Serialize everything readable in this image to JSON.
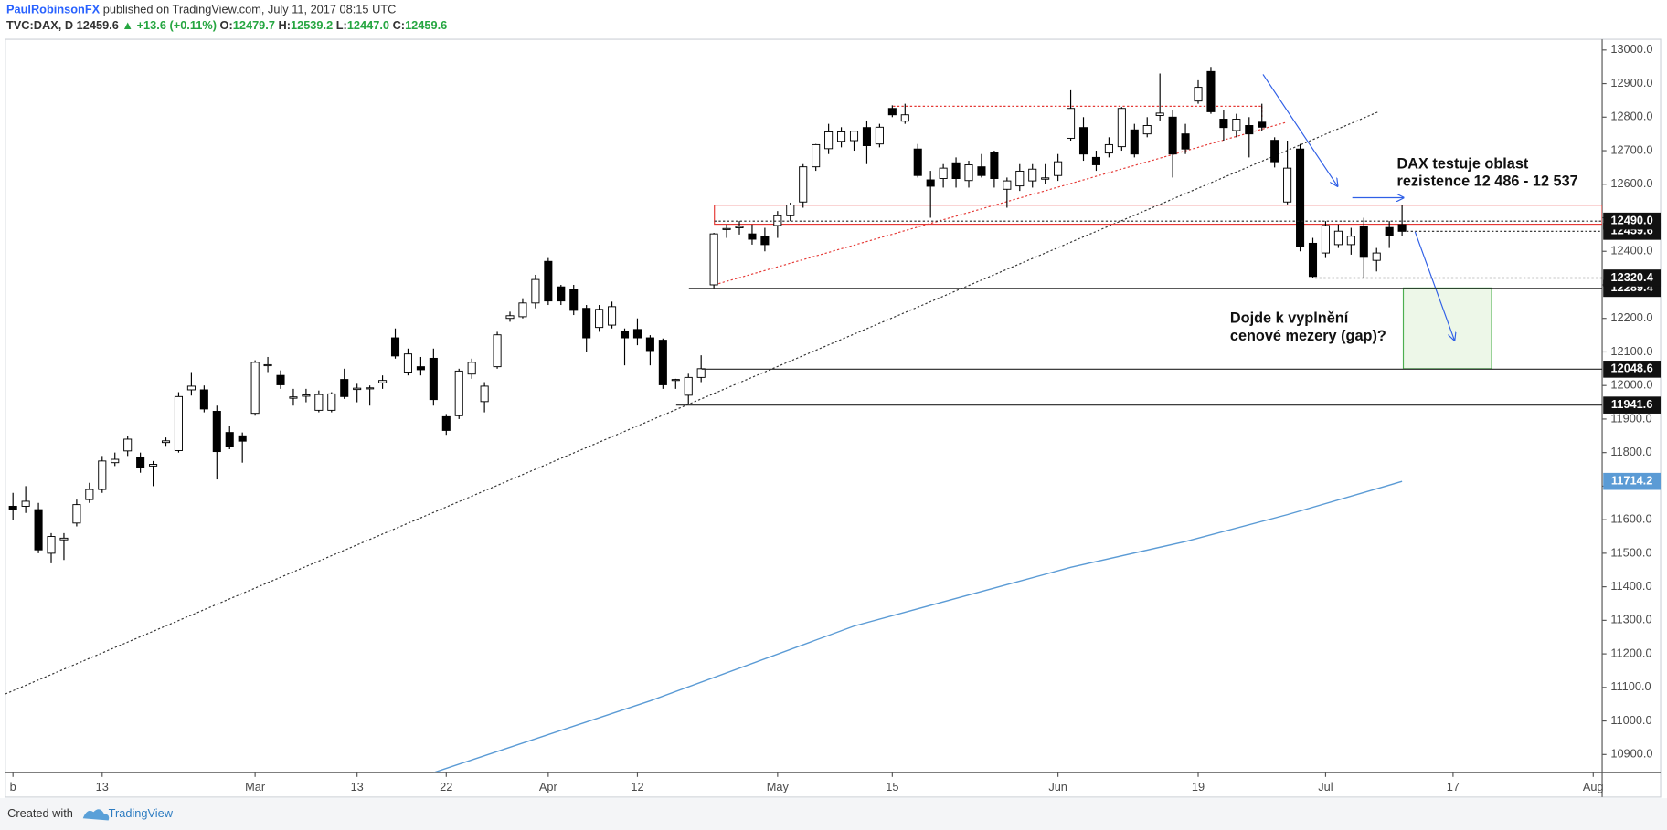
{
  "header": {
    "author": "PaulRobinsonFX",
    "published": "published on TradingView.com, July 11, 2017 08:15 UTC",
    "symbol": "TVC:DAX, D",
    "last": "12459.6",
    "change": "▲ +13.6 (+0.11%)",
    "ohlc": [
      {
        "label": "O:",
        "value": "12479.7"
      },
      {
        "label": "H:",
        "value": "12539.2"
      },
      {
        "label": "L:",
        "value": "12447.0"
      },
      {
        "label": "C:",
        "value": "12459.6"
      }
    ]
  },
  "annotations": [
    "DAX testuje oblast",
    "rezistence 12 486 - 12 537",
    "Dojde k vyplnění",
    "cenové mezery (gap)?"
  ],
  "footer": {
    "created": "Created with",
    "brand": "TradingView"
  },
  "chart_data": {
    "type": "candlestick",
    "open": [
      11640,
      11640,
      11630,
      11500,
      11540,
      11590,
      11660,
      11690,
      11770,
      11805,
      11785,
      11760,
      11830,
      11806,
      11987,
      11987,
      11923,
      11860,
      11850,
      11917,
      12060,
      12030,
      11962,
      11968,
      11926,
      11926,
      12018,
      11988,
      11990,
      12008,
      12142,
      12040,
      12056,
      12081,
      11907,
      11910,
      12034,
      11952,
      12056,
      12200,
      12205,
      12246,
      12370,
      12294,
      12287,
      12230,
      12173,
      12180,
      12160,
      12167,
      12142,
      12135,
      12015,
      11971,
      12024,
      12300,
      12465,
      12470,
      12452,
      12443,
      12477,
      12506,
      12547,
      12652,
      12706,
      12728,
      12730,
      12769,
      12720,
      12826,
      12788,
      12705,
      12613,
      12617,
      12664,
      12611,
      12652,
      12696,
      12585,
      12595,
      12610,
      12615,
      12626,
      12737,
      12769,
      12680,
      12693,
      12712,
      12762,
      12750,
      12805,
      12800,
      12750,
      12848,
      12936,
      12794,
      12760,
      12775,
      12785,
      12731,
      12547,
      12705,
      12424,
      12395,
      12420,
      12420,
      12474,
      12373,
      12471,
      12479.7
    ],
    "high": [
      11680,
      11700,
      11650,
      11560,
      11560,
      11660,
      11710,
      11790,
      11800,
      11850,
      11800,
      11775,
      11845,
      11980,
      12040,
      12000,
      11940,
      11880,
      11860,
      12075,
      12085,
      12045,
      11990,
      11990,
      11985,
      11980,
      12050,
      12005,
      12000,
      12030,
      12170,
      12110,
      12085,
      12110,
      11915,
      12050,
      12080,
      12010,
      12160,
      12220,
      12260,
      12330,
      12380,
      12300,
      12300,
      12240,
      12240,
      12250,
      12170,
      12200,
      12150,
      12140,
      12020,
      12035,
      12090,
      12455,
      12480,
      12490,
      12480,
      12470,
      12520,
      12545,
      12660,
      12720,
      12780,
      12770,
      12760,
      12790,
      12780,
      12835,
      12840,
      12720,
      12640,
      12660,
      12680,
      12670,
      12690,
      12700,
      12620,
      12660,
      12660,
      12660,
      12690,
      12880,
      12800,
      12700,
      12740,
      12830,
      12780,
      12800,
      12930,
      12820,
      12780,
      12910,
      12950,
      12820,
      12810,
      12800,
      12840,
      12740,
      12730,
      12720,
      12440,
      12490,
      12480,
      12470,
      12500,
      12410,
      12490,
      12539.2
    ],
    "low": [
      11600,
      11620,
      11500,
      11470,
      11480,
      11580,
      11650,
      11680,
      11760,
      11790,
      11740,
      11700,
      11820,
      11800,
      11970,
      11920,
      11720,
      11810,
      11770,
      11910,
      12040,
      11990,
      11940,
      11950,
      11920,
      11920,
      11960,
      11950,
      11940,
      11990,
      12080,
      12030,
      12030,
      11940,
      11853,
      11900,
      12020,
      11920,
      12050,
      12190,
      12200,
      12230,
      12240,
      12240,
      12210,
      12100,
      12160,
      12170,
      12060,
      12120,
      12060,
      11990,
      11990,
      11945,
      12010,
      12289.4,
      12440,
      12450,
      12420,
      12400,
      12440,
      12490,
      12530,
      12640,
      12690,
      12710,
      12700,
      12660,
      12710,
      12800,
      12780,
      12620,
      12500,
      12590,
      12590,
      12590,
      12620,
      12590,
      12530,
      12580,
      12590,
      12600,
      12610,
      12730,
      12670,
      12640,
      12680,
      12700,
      12680,
      12740,
      12790,
      12620,
      12690,
      12840,
      12810,
      12730,
      12740,
      12680,
      12760,
      12650,
      12540,
      12400,
      12319,
      12380,
      12410,
      12390,
      12320,
      12340,
      12410,
      12447
    ],
    "close": [
      11630,
      11655,
      11510,
      11550,
      11545,
      11645,
      11690,
      11775,
      11780,
      11840,
      11755,
      11765,
      11835,
      11967,
      11998,
      11930,
      11803,
      11818,
      11834,
      12069,
      12062,
      12002,
      11966,
      11972,
      11973,
      11975,
      11967,
      11992,
      11993,
      12015,
      12088,
      12094,
      12047,
      11958,
      11866,
      12043,
      12069,
      11998,
      12151,
      12208,
      12246,
      12316,
      12252,
      12252,
      12224,
      12142,
      12227,
      12235,
      12142,
      12142,
      12104,
      12002,
      12018,
      12024,
      12050,
      12452,
      12468,
      12474,
      12436,
      12420,
      12506,
      12538,
      12652,
      12718,
      12756,
      12756,
      12758,
      12715,
      12770,
      12807,
      12807,
      12626,
      12594,
      12648,
      12617,
      12658,
      12626,
      12617,
      12610,
      12639,
      12645,
      12619,
      12667,
      12826,
      12690,
      12658,
      12718,
      12826,
      12690,
      12775,
      12812,
      12690,
      12705,
      12889,
      12816,
      12769,
      12794,
      12750,
      12770,
      12667,
      12648,
      12414,
      12325,
      12477,
      12460,
      12445,
      12382,
      12395,
      12446,
      12459.6
    ],
    "up_color": "#ffffff",
    "down_color": "#000000",
    "ma": {
      "x": [
        33,
        50,
        66,
        83,
        92,
        100,
        109
      ],
      "values": [
        10846,
        11060,
        11283,
        11458,
        11535,
        11615,
        11714.2
      ],
      "label": "11714.2",
      "color": "#5b9bd5"
    },
    "levels": [
      {
        "value": 12459.6,
        "label": "12459.6",
        "style": "dotted"
      },
      {
        "value": 12490,
        "label": "12490.0",
        "style": "dotted"
      },
      {
        "value": 12289.4,
        "label": "12289.4",
        "style": "solid"
      },
      {
        "value": 12320.4,
        "label": "12320.4",
        "style": "dotted"
      },
      {
        "value": 12048.6,
        "label": "12048.6",
        "style": "solid"
      },
      {
        "value": 11941.6,
        "label": "11941.6",
        "style": "solid"
      }
    ],
    "ylim": [
      10846,
      13032
    ],
    "xlim": [
      -0.6,
      124.7
    ],
    "yticks": [
      {
        "value": 10900,
        "label": "10900.0"
      },
      {
        "value": 11000,
        "label": "11000.0"
      },
      {
        "value": 11100,
        "label": "11100.0"
      },
      {
        "value": 11200,
        "label": "11200.0"
      },
      {
        "value": 11300,
        "label": "11300.0"
      },
      {
        "value": 11400,
        "label": "11400.0"
      },
      {
        "value": 11500,
        "label": "11500.0"
      },
      {
        "value": 11600,
        "label": "11600.0"
      },
      {
        "value": 11700,
        "label": "11700.0"
      },
      {
        "value": 11800,
        "label": "11800.0"
      },
      {
        "value": 11900,
        "label": "11900.0"
      },
      {
        "value": 12000,
        "label": "12000.0"
      },
      {
        "value": 12100,
        "label": "12100.0"
      },
      {
        "value": 12200,
        "label": "12200.0"
      },
      {
        "value": 12300,
        "label": "12300.0"
      },
      {
        "value": 12400,
        "label": "12400.0"
      },
      {
        "value": 12500,
        "label": "12500.0"
      },
      {
        "value": 12600,
        "label": "12600.0"
      },
      {
        "value": 12700,
        "label": "12700.0"
      },
      {
        "value": 12800,
        "label": "12800.0"
      },
      {
        "value": 12900,
        "label": "12900.0"
      },
      {
        "value": 13000,
        "label": "13000.0"
      }
    ],
    "xticks": [
      {
        "value": 0,
        "label": "b"
      },
      {
        "value": 7,
        "label": "13"
      },
      {
        "value": 19,
        "label": "Mar"
      },
      {
        "value": 27,
        "label": "13"
      },
      {
        "value": 34,
        "label": "22"
      },
      {
        "value": 42,
        "label": "Apr"
      },
      {
        "value": 49,
        "label": "12"
      },
      {
        "value": 60,
        "label": "May"
      },
      {
        "value": 69,
        "label": "15"
      },
      {
        "value": 82,
        "label": "Jun"
      },
      {
        "value": 93,
        "label": "19"
      },
      {
        "value": 103,
        "label": "Jul"
      },
      {
        "value": 113,
        "label": "17"
      },
      {
        "value": 124,
        "label": "Aug"
      }
    ]
  }
}
